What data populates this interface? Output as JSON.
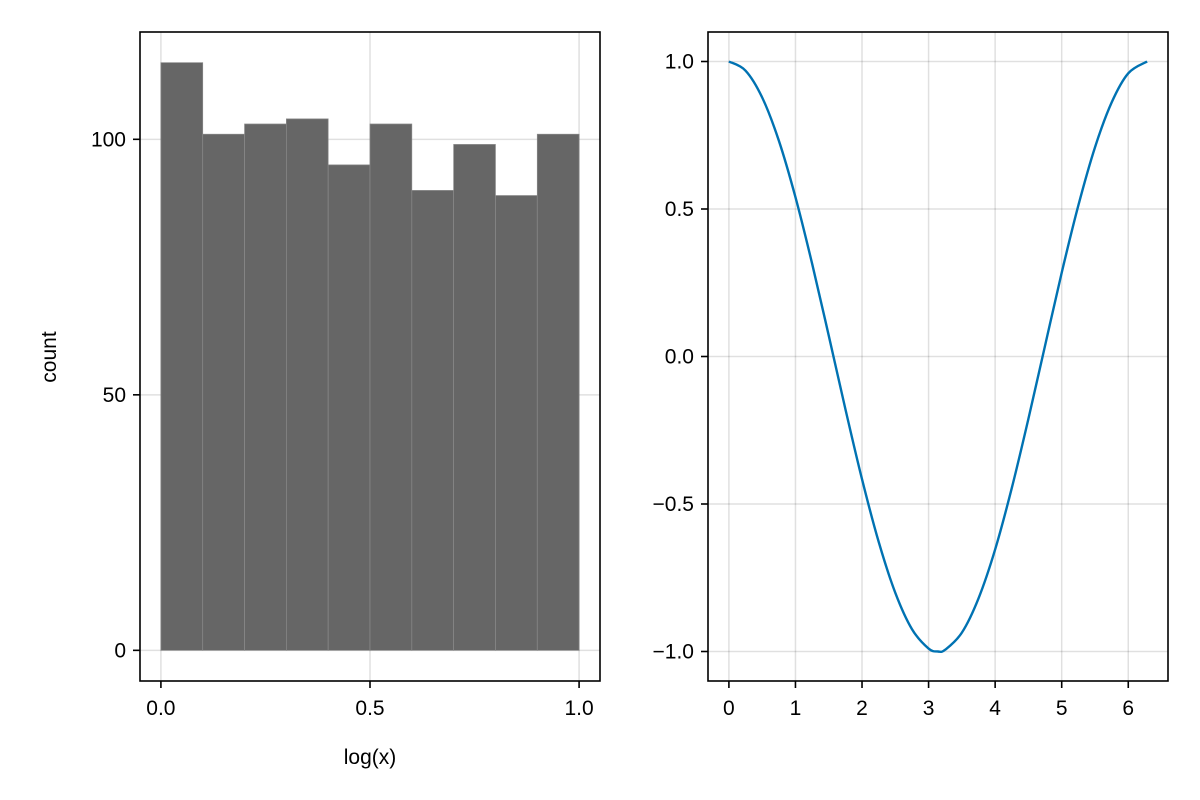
{
  "chart_data": [
    {
      "type": "bar",
      "title": "",
      "xlabel": "log(x)",
      "ylabel": "count",
      "xlim": [
        -0.05,
        1.05
      ],
      "ylim": [
        -6,
        121
      ],
      "xticks": [
        0.0,
        0.5,
        1.0
      ],
      "xtick_labels": [
        "0.0",
        "0.5",
        "1.0"
      ],
      "yticks": [
        0,
        50,
        100
      ],
      "ytick_labels": [
        "0",
        "50",
        "100"
      ],
      "grid": true,
      "bins": [
        {
          "x0": 0.0,
          "x1": 0.1,
          "count": 115
        },
        {
          "x0": 0.1,
          "x1": 0.2,
          "count": 101
        },
        {
          "x0": 0.2,
          "x1": 0.3,
          "count": 103
        },
        {
          "x0": 0.3,
          "x1": 0.4,
          "count": 104
        },
        {
          "x0": 0.4,
          "x1": 0.5,
          "count": 95
        },
        {
          "x0": 0.5,
          "x1": 0.6,
          "count": 103
        },
        {
          "x0": 0.6,
          "x1": 0.7,
          "count": 90
        },
        {
          "x0": 0.7,
          "x1": 0.8,
          "count": 99
        },
        {
          "x0": 0.8,
          "x1": 0.9,
          "count": 89
        },
        {
          "x0": 0.9,
          "x1": 1.0,
          "count": 101
        }
      ],
      "bar_color": "#666666"
    },
    {
      "type": "line",
      "title": "",
      "xlabel": "",
      "ylabel": "",
      "xlim": [
        -0.314,
        6.597
      ],
      "ylim": [
        -1.1,
        1.1
      ],
      "xticks": [
        0,
        1,
        2,
        3,
        4,
        5,
        6
      ],
      "xtick_labels": [
        "0",
        "1",
        "2",
        "3",
        "4",
        "5",
        "6"
      ],
      "yticks": [
        1.0,
        0.5,
        0.0,
        -0.5,
        -1.0
      ],
      "ytick_labels": [
        "1.0",
        "0.5",
        "0.0",
        "−0.5",
        "−1.0"
      ],
      "grid": true,
      "series": [
        {
          "color": "#0072b2",
          "x": [
            0.0,
            0.25,
            0.5,
            0.75,
            1.0,
            1.25,
            1.5,
            1.75,
            2.0,
            2.25,
            2.5,
            2.75,
            3.0,
            3.1416,
            3.25,
            3.5,
            3.75,
            4.0,
            4.25,
            4.5,
            4.75,
            5.0,
            5.25,
            5.5,
            5.75,
            6.0,
            6.2832
          ],
          "y": [
            1.0,
            0.969,
            0.878,
            0.732,
            0.54,
            0.315,
            0.071,
            -0.178,
            -0.416,
            -0.628,
            -0.801,
            -0.924,
            -0.99,
            -1.0,
            -0.994,
            -0.936,
            -0.82,
            -0.654,
            -0.446,
            -0.211,
            0.037,
            0.284,
            0.512,
            0.709,
            0.861,
            0.96,
            1.0
          ]
        }
      ]
    }
  ]
}
